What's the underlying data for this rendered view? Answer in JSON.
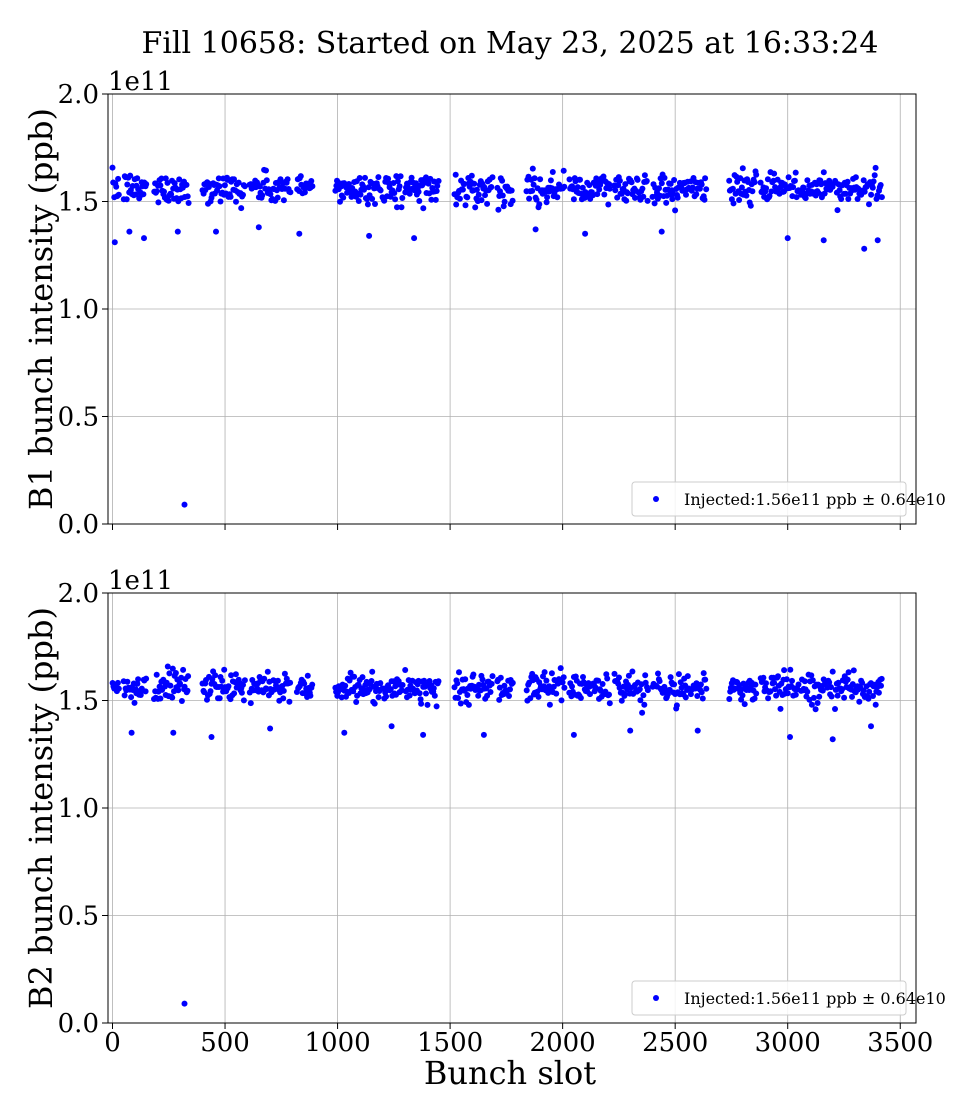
{
  "figure": {
    "title": "Fill 10658: Started on May 23, 2025 at 16:33:24",
    "xlabel": "Bunch slot",
    "marker_color": "#0000ff",
    "axes_color": "#000000",
    "grid_color": "#b0b0b0"
  },
  "chart_data": [
    {
      "type": "scatter",
      "ylabel": "B1 bunch intensity (ppb)",
      "y_offset_label": "1e11",
      "xlim": [
        -20,
        3570
      ],
      "ylim": [
        0.0,
        2.0
      ],
      "xticks": [
        0,
        500,
        1000,
        1500,
        2000,
        2500,
        3000,
        3500
      ],
      "xtick_labels": [
        "0",
        "500",
        "1000",
        "1500",
        "2000",
        "2500",
        "3000",
        "3500"
      ],
      "yticks": [
        0.0,
        0.5,
        1.0,
        1.5,
        2.0
      ],
      "ytick_labels": [
        "0.0",
        "0.5",
        "1.0",
        "1.5",
        "2.0"
      ],
      "grid": true,
      "legend": {
        "label": "Injected:1.56e11 ppb ± 0.64e10",
        "placement": "lower-right"
      },
      "series": [
        {
          "name": "Injected:1.56e11 ppb ± 0.64e10",
          "mean": 1.56,
          "std": 0.064,
          "trains": [
            [
              0,
              30
            ],
            [
              50,
              150
            ],
            [
              185,
              340
            ],
            [
              400,
              590
            ],
            [
              610,
              790
            ],
            [
              820,
              890
            ],
            [
              990,
              1190
            ],
            [
              1200,
              1290
            ],
            [
              1300,
              1450
            ],
            [
              1520,
              1690
            ],
            [
              1710,
              1780
            ],
            [
              1840,
              2010
            ],
            [
              2030,
              2210
            ],
            [
              2230,
              2380
            ],
            [
              2400,
              2560
            ],
            [
              2570,
              2640
            ],
            [
              2740,
              2860
            ],
            [
              2880,
              3050
            ],
            [
              3060,
              3200
            ],
            [
              3210,
              3420
            ]
          ],
          "outliers": [
            [
              320,
              0.09
            ],
            [
              10,
              1.31
            ],
            [
              75,
              1.36
            ],
            [
              140,
              1.33
            ],
            [
              290,
              1.36
            ],
            [
              460,
              1.36
            ],
            [
              650,
              1.38
            ],
            [
              830,
              1.35
            ],
            [
              1140,
              1.34
            ],
            [
              1340,
              1.33
            ],
            [
              1880,
              1.37
            ],
            [
              2100,
              1.35
            ],
            [
              2440,
              1.36
            ],
            [
              3000,
              1.33
            ],
            [
              3160,
              1.32
            ],
            [
              3340,
              1.28
            ],
            [
              3400,
              1.32
            ]
          ]
        }
      ]
    },
    {
      "type": "scatter",
      "ylabel": "B2 bunch intensity (ppb)",
      "y_offset_label": "1e11",
      "xlim": [
        -20,
        3570
      ],
      "ylim": [
        0.0,
        2.0
      ],
      "xticks": [
        0,
        500,
        1000,
        1500,
        2000,
        2500,
        3000,
        3500
      ],
      "xtick_labels": [
        "0",
        "500",
        "1000",
        "1500",
        "2000",
        "2500",
        "3000",
        "3500"
      ],
      "yticks": [
        0.0,
        0.5,
        1.0,
        1.5,
        2.0
      ],
      "ytick_labels": [
        "0.0",
        "0.5",
        "1.0",
        "1.5",
        "2.0"
      ],
      "grid": true,
      "legend": {
        "label": "Injected:1.56e11 ppb ± 0.64e10",
        "placement": "lower-right"
      },
      "series": [
        {
          "name": "Injected:1.56e11 ppb ± 0.64e10",
          "mean": 1.56,
          "std": 0.064,
          "trains": [
            [
              0,
              30
            ],
            [
              50,
              150
            ],
            [
              185,
              340
            ],
            [
              400,
              590
            ],
            [
              610,
              790
            ],
            [
              820,
              890
            ],
            [
              990,
              1190
            ],
            [
              1200,
              1290
            ],
            [
              1300,
              1450
            ],
            [
              1520,
              1690
            ],
            [
              1710,
              1780
            ],
            [
              1840,
              2010
            ],
            [
              2030,
              2210
            ],
            [
              2230,
              2380
            ],
            [
              2400,
              2560
            ],
            [
              2570,
              2640
            ],
            [
              2740,
              2860
            ],
            [
              2880,
              3050
            ],
            [
              3060,
              3200
            ],
            [
              3210,
              3420
            ]
          ],
          "outliers": [
            [
              320,
              0.09
            ],
            [
              85,
              1.35
            ],
            [
              270,
              1.35
            ],
            [
              440,
              1.33
            ],
            [
              700,
              1.37
            ],
            [
              1030,
              1.35
            ],
            [
              1240,
              1.38
            ],
            [
              1380,
              1.34
            ],
            [
              1650,
              1.34
            ],
            [
              2050,
              1.34
            ],
            [
              2300,
              1.36
            ],
            [
              2600,
              1.36
            ],
            [
              3010,
              1.33
            ],
            [
              3200,
              1.32
            ],
            [
              3370,
              1.38
            ]
          ]
        }
      ]
    }
  ]
}
